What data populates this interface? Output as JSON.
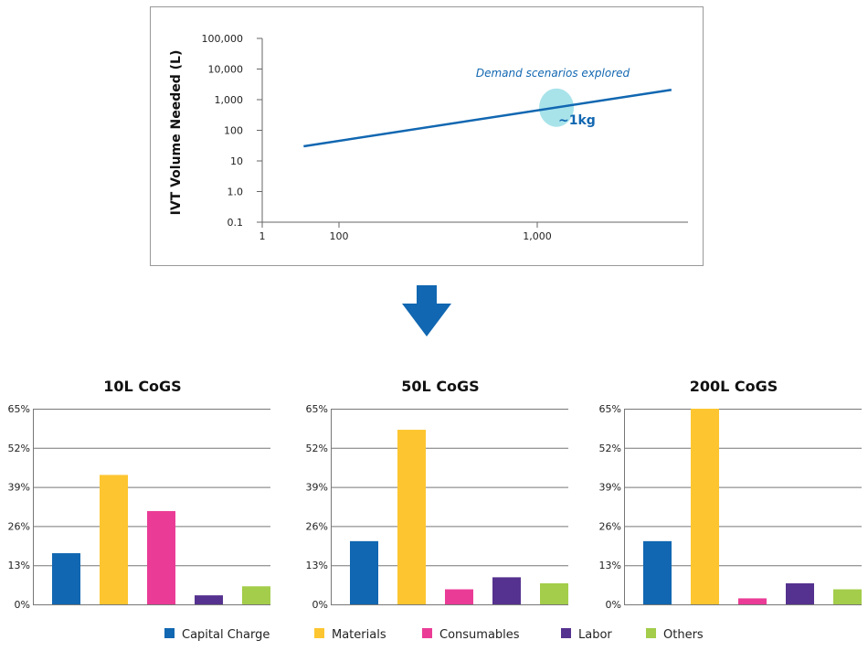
{
  "chart_data": [
    {
      "type": "line",
      "ylabel": "IVT Volume Needed (L)",
      "xlabel": "",
      "yscale": "log",
      "xscale": "log",
      "y_ticks": [
        "100,000",
        "10,000",
        "1,000",
        "100",
        "10",
        "1.0",
        "0.1"
      ],
      "x_ticks": [
        "1",
        "100",
        "1,000"
      ],
      "grid": false,
      "series": [
        {
          "x": [
            12,
            4750
          ],
          "y": [
            30,
            2100
          ],
          "color": "#1167b1"
        }
      ],
      "annotations": {
        "region_label": "Demand scenarios explored",
        "highlight_label": "~1kg",
        "highlight_point": {
          "x": 1250,
          "y": 550
        },
        "highlight_color": "#a8e3ea"
      }
    },
    {
      "type": "bar",
      "title": "10L CoGS",
      "categories": [
        "Capital Charge",
        "Materials",
        "Consumables",
        "Labor",
        "Others"
      ],
      "values": [
        17,
        43,
        31,
        3,
        6
      ],
      "ylim": [
        0,
        65
      ],
      "y_ticks": [
        "0%",
        "13%",
        "26%",
        "39%",
        "52%",
        "65%"
      ],
      "grid": true
    },
    {
      "type": "bar",
      "title": "50L CoGS",
      "categories": [
        "Capital Charge",
        "Materials",
        "Consumables",
        "Labor",
        "Others"
      ],
      "values": [
        21,
        58,
        5,
        9,
        7
      ],
      "ylim": [
        0,
        65
      ],
      "y_ticks": [
        "0%",
        "13%",
        "26%",
        "39%",
        "52%",
        "65%"
      ],
      "grid": true
    },
    {
      "type": "bar",
      "title": "200L CoGS",
      "categories": [
        "Capital Charge",
        "Materials",
        "Consumables",
        "Labor",
        "Others"
      ],
      "values": [
        21,
        65,
        2,
        7,
        5
      ],
      "ylim": [
        0,
        65
      ],
      "y_ticks": [
        "0%",
        "13%",
        "26%",
        "39%",
        "52%",
        "65%"
      ],
      "grid": true
    }
  ],
  "legend": {
    "placement": "bottom",
    "items": [
      {
        "label": "Capital Charge",
        "color": "#1167b1"
      },
      {
        "label": "Materials",
        "color": "#fdc630"
      },
      {
        "label": "Consumables",
        "color": "#ea3c96"
      },
      {
        "label": "Labor",
        "color": "#55328f"
      },
      {
        "label": "Others",
        "color": "#a3cd4a"
      }
    ]
  },
  "arrow": {
    "icon": "down-arrow-icon",
    "color": "#1167b1"
  }
}
